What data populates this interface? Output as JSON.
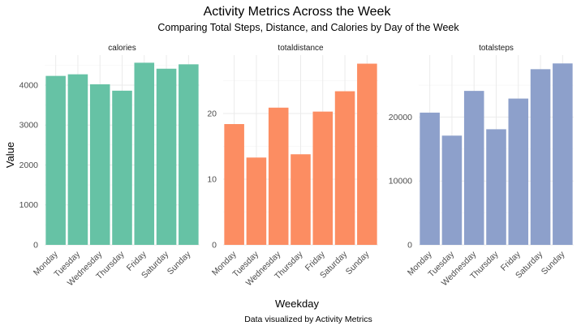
{
  "title": "Activity Metrics Across the Week",
  "subtitle": "Comparing Total Steps, Distance, and Calories by Day of the Week",
  "xlabel": "Weekday",
  "ylabel": "Value",
  "caption": "Data visualized by Activity Metrics",
  "chart_data": {
    "type": "bar",
    "facet": "free_y",
    "categories": [
      "Monday",
      "Tuesday",
      "Wednesday",
      "Thursday",
      "Friday",
      "Saturday",
      "Sunday"
    ],
    "panels": [
      {
        "name": "calories",
        "color": "#66C2A5",
        "values": [
          4230,
          4270,
          4020,
          3860,
          4560,
          4410,
          4520
        ],
        "ylim": [
          0,
          4750
        ],
        "yticks": [
          0,
          1000,
          2000,
          3000,
          4000
        ]
      },
      {
        "name": "totaldistance",
        "color": "#FC8D62",
        "values": [
          18.4,
          13.3,
          20.9,
          13.8,
          20.3,
          23.4,
          27.6
        ],
        "ylim": [
          0,
          28.9
        ],
        "yticks": [
          0,
          10,
          20
        ]
      },
      {
        "name": "totalsteps",
        "color": "#8DA0CB",
        "values": [
          20700,
          17100,
          24100,
          18100,
          22900,
          27500,
          28400
        ],
        "ylim": [
          0,
          29700
        ],
        "yticks": [
          0,
          10000,
          20000
        ]
      }
    ],
    "grid": true,
    "legend": "none"
  }
}
